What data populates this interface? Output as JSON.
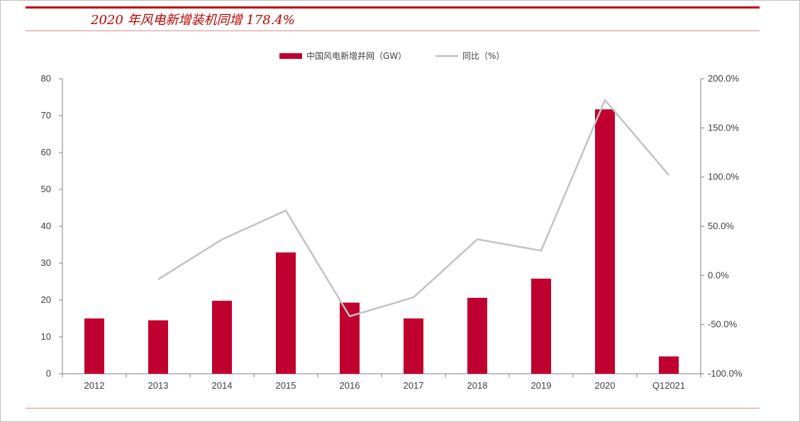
{
  "title": "2020 年风电新增装机同增 178.4%",
  "colors": {
    "bar": "#c0002f",
    "line": "#c3c3c3",
    "accent": "#c00000"
  },
  "chart_data": {
    "type": "bar",
    "categories": [
      "2012",
      "2013",
      "2014",
      "2015",
      "2016",
      "2017",
      "2018",
      "2019",
      "2020",
      "Q12021"
    ],
    "series": [
      {
        "name": "中国风电新增并网（GW）",
        "type": "bar",
        "axis": "left",
        "values": [
          15.0,
          14.5,
          19.8,
          32.9,
          19.3,
          15.0,
          20.6,
          25.8,
          71.7,
          4.7
        ]
      },
      {
        "name": "同比（%）",
        "type": "line",
        "axis": "right",
        "values": [
          null,
          -4.0,
          36.6,
          66.0,
          -41.5,
          -22.3,
          36.7,
          25.2,
          178.4,
          102.0
        ]
      }
    ],
    "y_left": {
      "min": 0,
      "max": 80,
      "ticks": [
        "0",
        "10",
        "20",
        "30",
        "40",
        "50",
        "60",
        "70",
        "80"
      ]
    },
    "y_right": {
      "min": -100,
      "max": 200,
      "ticks": [
        "-100.0%",
        "-50.0%",
        "0.0%",
        "50.0%",
        "100.0%",
        "150.0%",
        "200.0%"
      ]
    },
    "legend_position": "top-center",
    "grid": false
  }
}
